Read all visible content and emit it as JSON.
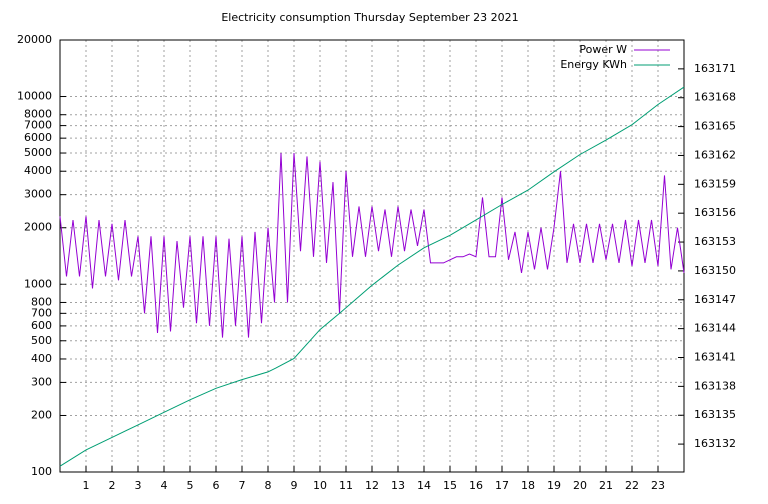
{
  "chart_data": {
    "type": "line",
    "title": "Electricity consumption Thursday September 23 2021",
    "xlim": [
      0,
      24
    ],
    "xticks": [
      1,
      2,
      3,
      4,
      5,
      6,
      7,
      8,
      9,
      10,
      11,
      12,
      13,
      14,
      15,
      16,
      17,
      18,
      19,
      20,
      21,
      22,
      23
    ],
    "ylim": [
      100,
      20000
    ],
    "log_y": true,
    "yticks": [
      100,
      200,
      300,
      400,
      500,
      600,
      700,
      800,
      1000,
      2000,
      3000,
      4000,
      5000,
      6000,
      7000,
      8000,
      10000,
      20000
    ],
    "y2lim": [
      163129.1,
      163174
    ],
    "y2ticks": [
      163132,
      163135,
      163138,
      163141,
      163144,
      163147,
      163150,
      163153,
      163156,
      163159,
      163162,
      163165,
      163168,
      163171
    ],
    "grid": true,
    "legend": "top-right",
    "series": [
      {
        "name": "Power W",
        "color": "#9400d3",
        "x": [
          0,
          0.25,
          0.5,
          0.75,
          1,
          1.25,
          1.5,
          1.75,
          2,
          2.25,
          2.5,
          2.75,
          3,
          3.25,
          3.5,
          3.75,
          4,
          4.25,
          4.5,
          4.75,
          5,
          5.25,
          5.5,
          5.75,
          6,
          6.25,
          6.5,
          6.75,
          7,
          7.25,
          7.5,
          7.75,
          8,
          8.25,
          8.5,
          8.75,
          9,
          9.25,
          9.5,
          9.75,
          10,
          10.25,
          10.5,
          10.75,
          11,
          11.25,
          11.5,
          11.75,
          12,
          12.25,
          12.5,
          12.75,
          13,
          13.25,
          13.5,
          13.75,
          14,
          14.25,
          14.5,
          14.75,
          15,
          15.25,
          15.5,
          15.75,
          16,
          16.25,
          16.5,
          16.75,
          17,
          17.25,
          17.5,
          17.75,
          18,
          18.25,
          18.5,
          18.75,
          19,
          19.25,
          19.5,
          19.75,
          20,
          20.25,
          20.5,
          20.75,
          21,
          21.25,
          21.5,
          21.75,
          22,
          22.25,
          22.5,
          22.75,
          23,
          23.25,
          23.5,
          23.75,
          24
        ],
        "values": [
          2300,
          1100,
          2200,
          1100,
          2300,
          950,
          2200,
          1100,
          2100,
          1050,
          2200,
          1100,
          1800,
          700,
          1800,
          550,
          1800,
          560,
          1700,
          750,
          1800,
          620,
          1800,
          600,
          1800,
          520,
          1750,
          600,
          1800,
          520,
          1900,
          620,
          2000,
          800,
          5000,
          800,
          5000,
          1500,
          4800,
          1400,
          4500,
          1300,
          3500,
          700,
          4000,
          1400,
          2600,
          1400,
          2600,
          1500,
          2500,
          1400,
          2600,
          1500,
          2500,
          1600,
          2500,
          1300,
          1300,
          1300,
          1350,
          1400,
          1400,
          1450,
          1400,
          2900,
          1400,
          1400,
          2900,
          1350,
          1900,
          1150,
          1900,
          1200,
          2000,
          1200,
          2000,
          4000,
          1300,
          2100,
          1300,
          2100,
          1300,
          2100,
          1350,
          2100,
          1300,
          2200,
          1250,
          2200,
          1300,
          2200,
          1250,
          3800,
          1200,
          2000,
          1150
        ]
      },
      {
        "name": "Energy KWh",
        "color": "#009e73",
        "axis": "y2",
        "x": [
          0,
          1,
          2,
          3,
          4,
          5,
          6,
          7,
          8,
          8.3,
          9,
          10,
          10.8,
          12,
          13,
          14,
          15,
          16,
          17,
          18,
          19,
          20,
          21,
          22,
          23,
          24
        ],
        "values": [
          163129.7,
          163131.4,
          163132.7,
          163134,
          163135.3,
          163136.6,
          163137.8,
          163138.7,
          163139.5,
          163139.9,
          163140.9,
          163143.9,
          163145.7,
          163148.5,
          163150.6,
          163152.4,
          163153.7,
          163155.3,
          163156.9,
          163158.4,
          163160.3,
          163162.1,
          163163.6,
          163165.2,
          163167.3,
          163169.1
        ]
      }
    ]
  }
}
